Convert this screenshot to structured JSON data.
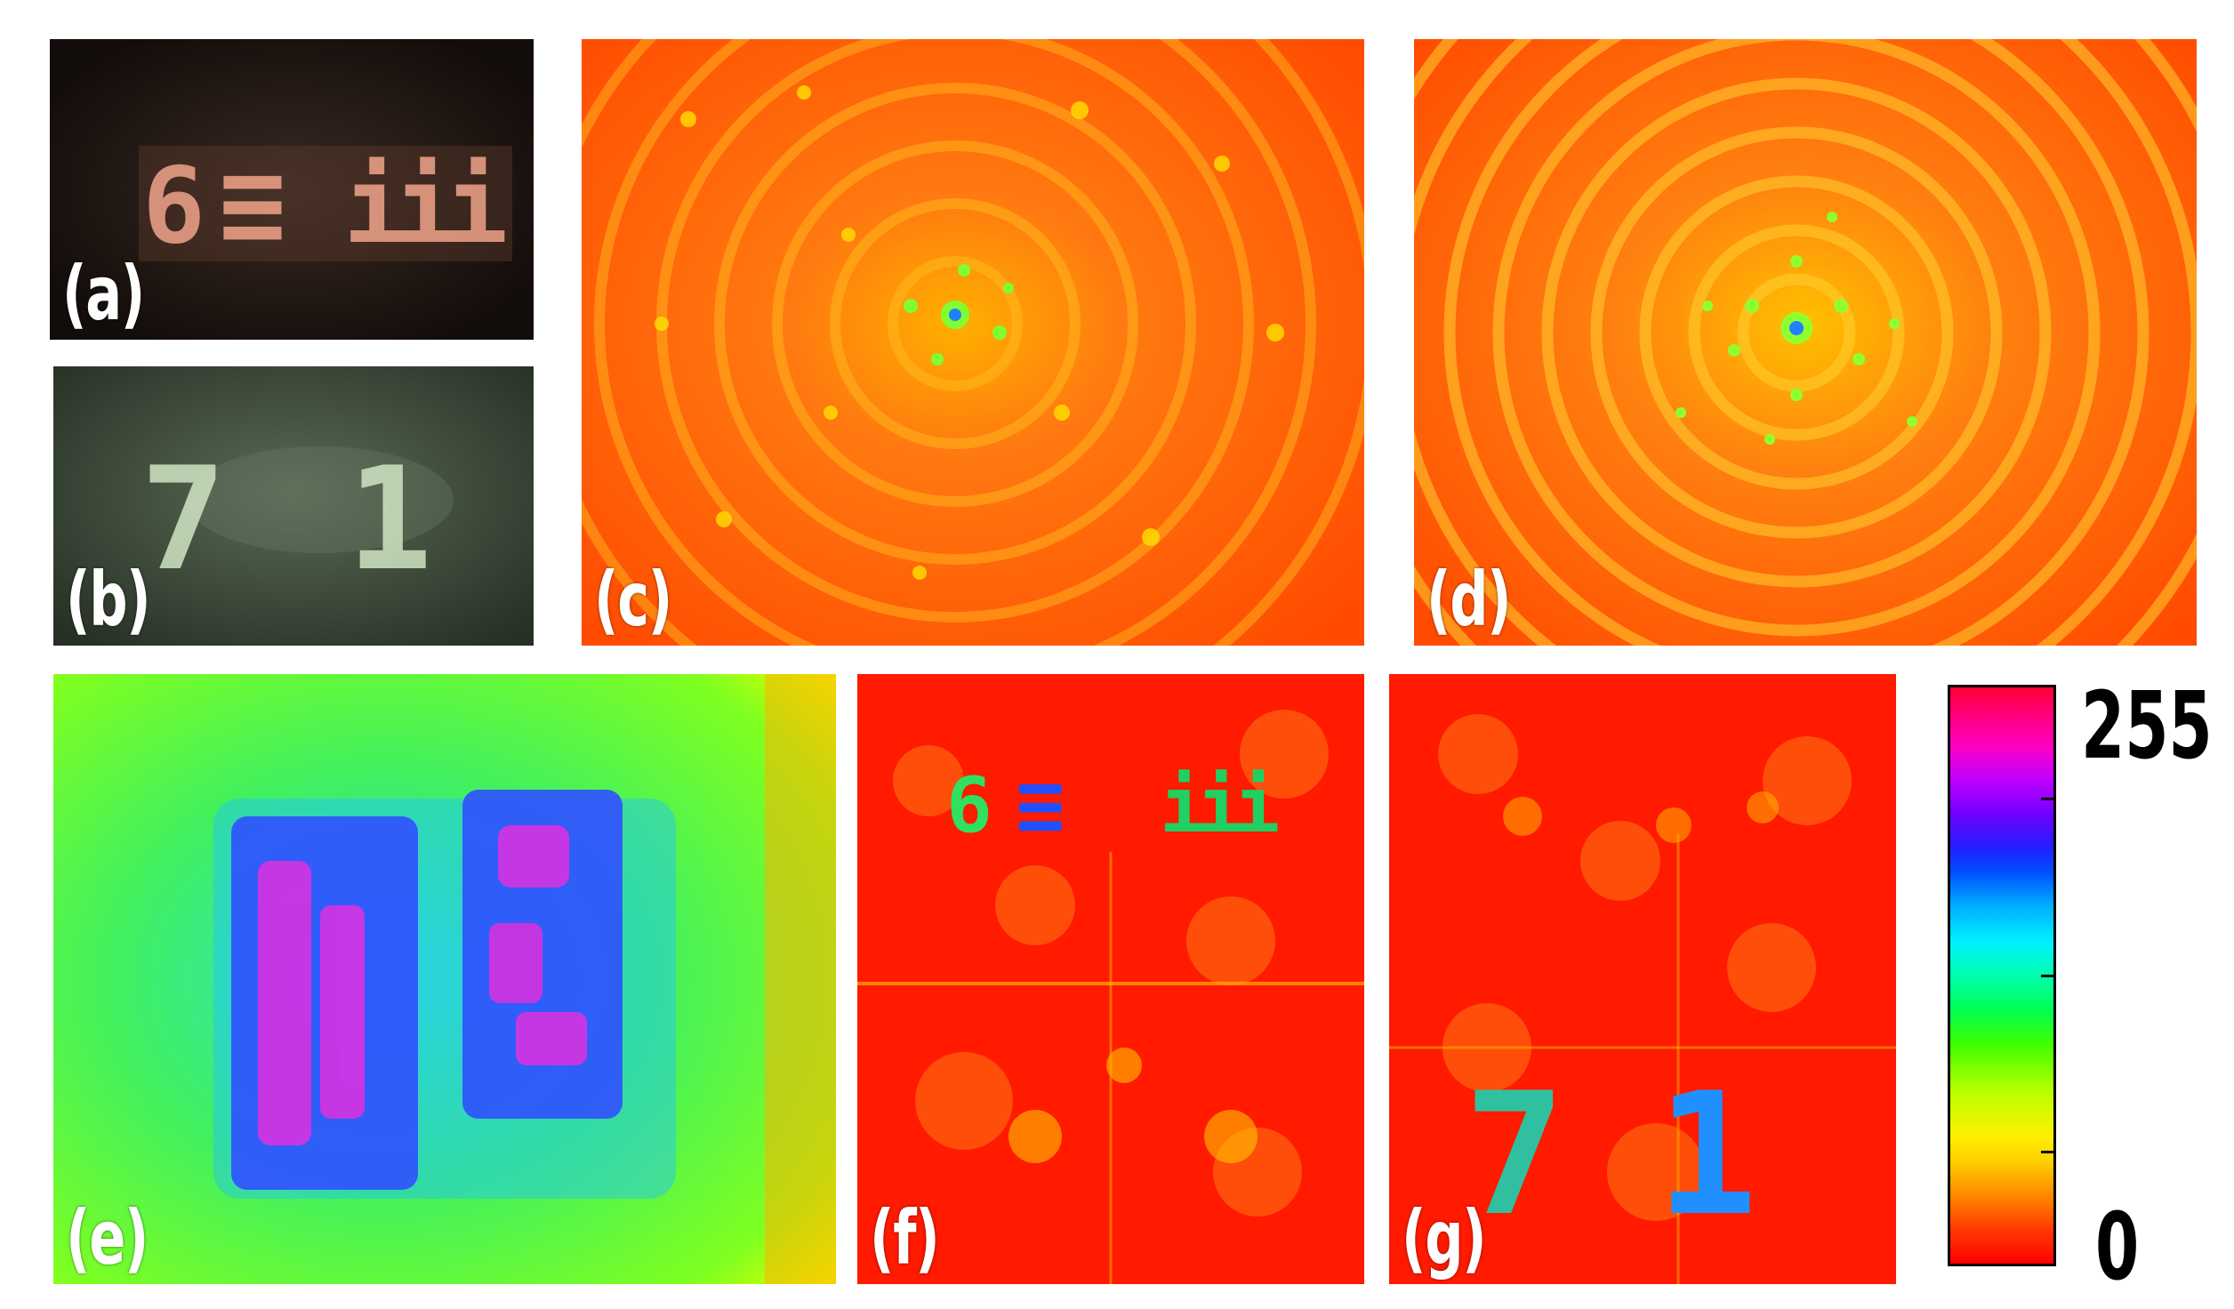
{
  "panels": {
    "a": {
      "label": "(a)",
      "glyphs": [
        "6",
        "≡",
        "iii"
      ]
    },
    "b": {
      "label": "(b)",
      "glyphs": [
        "7",
        "1"
      ]
    },
    "c": {
      "label": "(c)"
    },
    "d": {
      "label": "(d)"
    },
    "e": {
      "label": "(e)"
    },
    "f": {
      "label": "(f)",
      "glyphs": [
        "6",
        "≡",
        "iii"
      ]
    },
    "g": {
      "label": "(g)",
      "glyphs": [
        "7",
        "1"
      ]
    }
  },
  "colorbar": {
    "max_label": "255",
    "min_label": "0",
    "colormap": "red-yellow-green-cyan-blue-magenta"
  },
  "colors": {
    "hot_red": "#ff1a00",
    "orange": "#ff7a10",
    "yellow": "#ffe000",
    "green": "#40ff20",
    "cyan": "#00e0ff",
    "blue": "#2030ff",
    "magenta": "#ff20d0"
  }
}
